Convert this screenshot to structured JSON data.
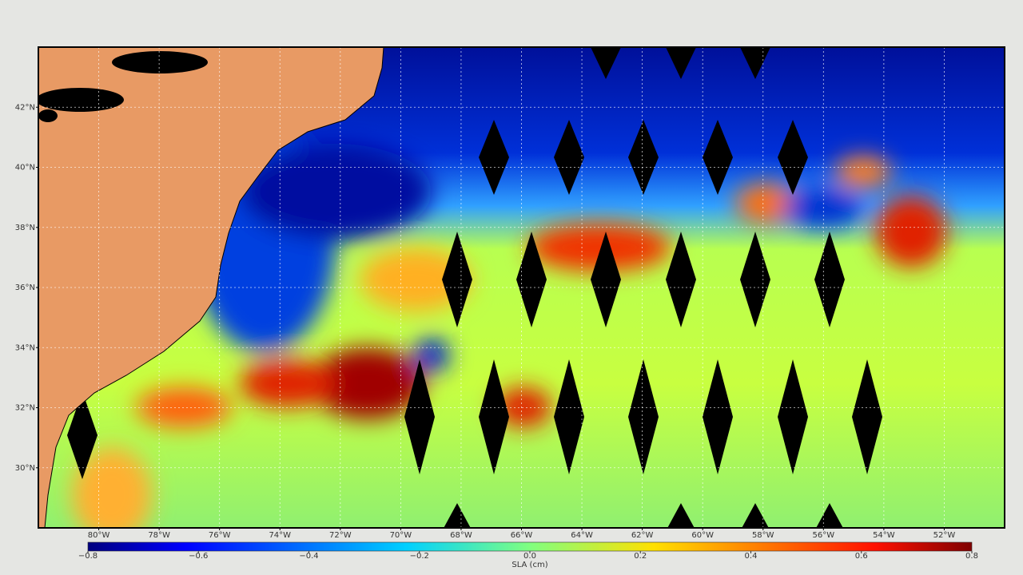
{
  "map": {
    "xlim": [
      -82,
      -50
    ],
    "ylim": [
      28,
      44
    ],
    "xticks": [
      {
        "value": -80,
        "label": "80°W"
      },
      {
        "value": -78,
        "label": "78°W"
      },
      {
        "value": -76,
        "label": "76°W"
      },
      {
        "value": -74,
        "label": "74°W"
      },
      {
        "value": -72,
        "label": "72°W"
      },
      {
        "value": -70,
        "label": "70°W"
      },
      {
        "value": -68,
        "label": "68°W"
      },
      {
        "value": -66,
        "label": "66°W"
      },
      {
        "value": -64,
        "label": "64°W"
      },
      {
        "value": -62,
        "label": "62°W"
      },
      {
        "value": -60,
        "label": "60°W"
      },
      {
        "value": -58,
        "label": "58°W"
      },
      {
        "value": -56,
        "label": "56°W"
      },
      {
        "value": -54,
        "label": "54°W"
      },
      {
        "value": -52,
        "label": "52°W"
      }
    ],
    "yticks": [
      {
        "value": 30,
        "label": "30°N"
      },
      {
        "value": 32,
        "label": "32°N"
      },
      {
        "value": 34,
        "label": "34°N"
      },
      {
        "value": 36,
        "label": "36°N"
      },
      {
        "value": 38,
        "label": "38°N"
      },
      {
        "value": 40,
        "label": "40°N"
      },
      {
        "value": 42,
        "label": "42°N"
      }
    ],
    "grid": true,
    "colorbar": {
      "label": "SLA (cm)",
      "lim": [
        -0.8,
        0.8
      ],
      "ticks": [
        {
          "value": -0.8,
          "label": "−0.8"
        },
        {
          "value": -0.6,
          "label": "−0.6"
        },
        {
          "value": -0.4,
          "label": "−0.4"
        },
        {
          "value": -0.2,
          "label": "−0.2"
        },
        {
          "value": 0,
          "label": "0.0"
        },
        0.2,
        0.4,
        0.6,
        0.8
      ]
    }
  }
}
